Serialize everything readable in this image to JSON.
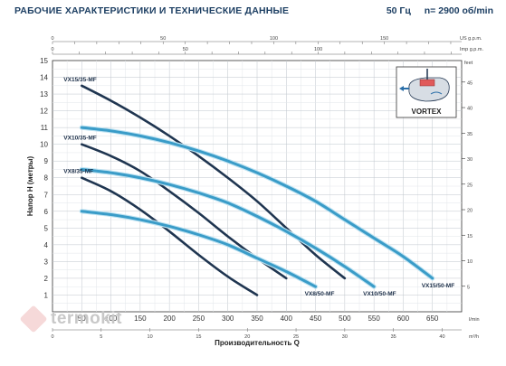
{
  "header": {
    "title": "РАБОЧИЕ ХАРАКТЕРИСТИКИ И ТЕХНИЧЕСКИЕ ДАННЫЕ",
    "frequency": "50 Гц",
    "speed": "n= 2900 об/min"
  },
  "inset": {
    "label": "VORTEX"
  },
  "watermark": "termokit",
  "chart_data": {
    "type": "line",
    "xlabel": "Производительность Q",
    "ylabel": "Напор H (метры)",
    "x_unit": "l/min",
    "xlim": [
      0,
      700
    ],
    "ylim": [
      0,
      15
    ],
    "x_ticks": [
      50,
      100,
      150,
      200,
      250,
      300,
      350,
      400,
      450,
      500,
      550,
      600,
      650
    ],
    "y_ticks": [
      1,
      2,
      3,
      4,
      5,
      6,
      7,
      8,
      9,
      10,
      11,
      12,
      13,
      14,
      15
    ],
    "secondary_axes": {
      "top_us": {
        "unit": "US g.p.m.",
        "ticks": [
          0,
          50,
          100,
          150
        ]
      },
      "top_imp": {
        "unit": "Imp g.p.m.",
        "ticks": [
          0,
          50,
          100
        ]
      },
      "bottom_m3h": {
        "unit": "m³/h",
        "ticks": [
          0,
          5,
          10,
          15,
          20,
          25,
          30,
          35,
          40
        ]
      },
      "right_feet": {
        "unit": "feet",
        "ticks": [
          5,
          10,
          15,
          20,
          25,
          30,
          35,
          40,
          45
        ]
      }
    },
    "series": [
      {
        "name": "VX8/35-MF",
        "x": [
          50,
          100,
          150,
          200,
          250,
          300,
          350
        ],
        "y": [
          8.0,
          7.2,
          6.1,
          4.8,
          3.4,
          2.1,
          1.0
        ]
      },
      {
        "name": "VX10/35-MF",
        "x": [
          50,
          100,
          150,
          200,
          250,
          300,
          350,
          400
        ],
        "y": [
          10.0,
          9.3,
          8.4,
          7.2,
          5.9,
          4.5,
          3.2,
          2.0
        ]
      },
      {
        "name": "VX15/35-MF",
        "x": [
          50,
          100,
          150,
          200,
          250,
          300,
          350,
          400,
          450,
          500
        ],
        "y": [
          13.5,
          12.6,
          11.6,
          10.5,
          9.3,
          8.0,
          6.6,
          5.0,
          3.4,
          2.0
        ]
      },
      {
        "name": "VX8/50-MF",
        "x": [
          50,
          100,
          150,
          200,
          250,
          300,
          350,
          400,
          450
        ],
        "y": [
          6.0,
          5.8,
          5.5,
          5.1,
          4.6,
          4.0,
          3.2,
          2.4,
          1.5
        ]
      },
      {
        "name": "VX10/50-MF",
        "x": [
          50,
          100,
          150,
          200,
          250,
          300,
          350,
          400,
          450,
          500,
          550
        ],
        "y": [
          8.5,
          8.3,
          8.0,
          7.6,
          7.1,
          6.5,
          5.7,
          4.8,
          3.8,
          2.7,
          1.5
        ]
      },
      {
        "name": "VX15/50-MF",
        "x": [
          50,
          100,
          150,
          200,
          250,
          300,
          350,
          400,
          450,
          500,
          550,
          600,
          650
        ],
        "y": [
          11.0,
          10.8,
          10.5,
          10.1,
          9.6,
          9.0,
          8.3,
          7.5,
          6.6,
          5.5,
          4.4,
          3.3,
          2.0
        ]
      }
    ]
  }
}
